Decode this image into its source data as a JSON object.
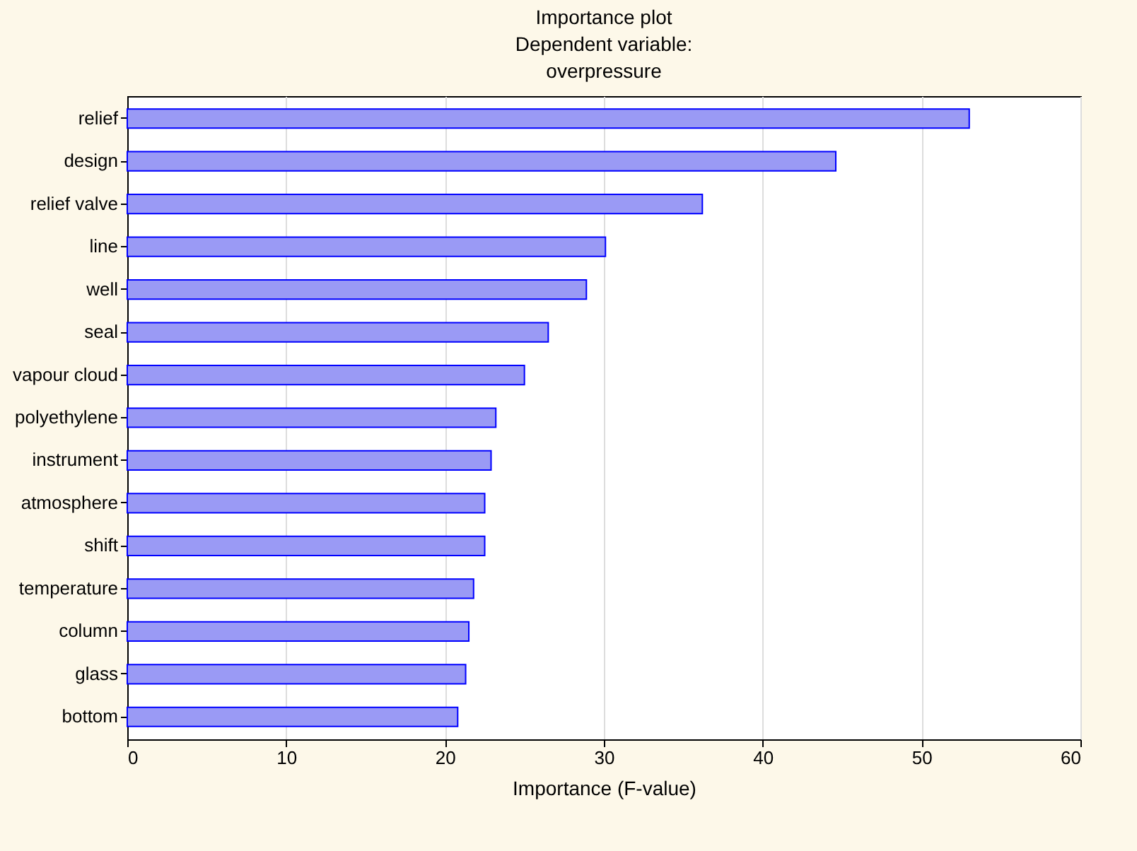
{
  "chart_data": {
    "type": "bar",
    "orientation": "horizontal",
    "title": "Importance plot\nDependent variable:\noverpressure",
    "xlabel": "Importance (F-value)",
    "categories": [
      "relief",
      "design",
      "relief valve",
      "line",
      "well",
      "seal",
      "vapour cloud",
      "polyethylene",
      "instrument",
      "atmosphere",
      "shift",
      "temperature",
      "column",
      "glass",
      "bottom"
    ],
    "values": [
      53.0,
      44.6,
      36.2,
      30.1,
      28.9,
      26.5,
      25.0,
      23.2,
      22.9,
      22.5,
      22.5,
      21.8,
      21.5,
      21.3,
      20.8
    ],
    "color": "#9a9af5",
    "xlim": [
      0,
      60
    ],
    "xticks": [
      0,
      10,
      20,
      30,
      40,
      50,
      60
    ],
    "grid": "x"
  }
}
